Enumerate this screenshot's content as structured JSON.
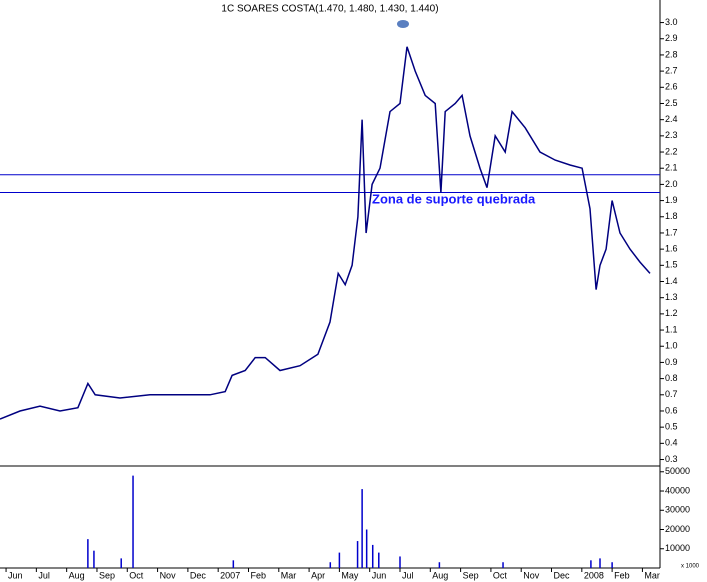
{
  "chart_data": [
    {
      "type": "line",
      "title": "1C SOARES COSTA(1.470, 1.480, 1.430, 1.440)",
      "color": "#000080",
      "x": [
        -0.2,
        0.46,
        1.12,
        1.78,
        2.37,
        2.7,
        2.94,
        3.76,
        4.75,
        5.74,
        6.73,
        7.23,
        7.46,
        7.89,
        8.22,
        8.55,
        9.04,
        9.7,
        10.29,
        10.69,
        10.96,
        11.19,
        11.42,
        11.61,
        11.75,
        11.88,
        12.08,
        12.34,
        12.67,
        13.0,
        13.23,
        13.5,
        13.83,
        14.16,
        14.35,
        14.49,
        14.82,
        15.05,
        15.31,
        15.64,
        15.87,
        16.14,
        16.47,
        16.7,
        17.13,
        17.62,
        18.12,
        18.61,
        19.01,
        19.27,
        19.47,
        19.6,
        19.8,
        20.0,
        20.26,
        20.59,
        20.92,
        21.25
      ],
      "values": [
        0.55,
        0.6,
        0.63,
        0.6,
        0.62,
        0.77,
        0.7,
        0.68,
        0.7,
        0.7,
        0.7,
        0.72,
        0.82,
        0.85,
        0.93,
        0.93,
        0.85,
        0.88,
        0.95,
        1.15,
        1.45,
        1.38,
        1.5,
        1.8,
        2.4,
        1.7,
        2.0,
        2.1,
        2.45,
        2.5,
        2.85,
        2.7,
        2.55,
        2.5,
        1.95,
        2.45,
        2.5,
        2.55,
        2.3,
        2.1,
        1.98,
        2.3,
        2.2,
        2.45,
        2.35,
        2.2,
        2.15,
        2.12,
        2.1,
        1.85,
        1.35,
        1.5,
        1.6,
        1.9,
        1.7,
        1.6,
        1.52,
        1.45
      ],
      "xlim": [
        -0.2,
        21.58
      ],
      "ylim": [
        0.26,
        3.09
      ],
      "yticks": [
        0.3,
        0.4,
        0.5,
        0.6,
        0.7,
        0.8,
        0.9,
        {
          "value": 1.0,
          "label": "1.0"
        },
        1.1,
        1.2,
        1.3,
        1.4,
        1.5,
        1.6,
        1.7,
        1.8,
        1.9,
        {
          "value": 2.0,
          "label": "2.0"
        },
        2.1,
        2.2,
        2.3,
        2.4,
        2.5,
        2.6,
        2.7,
        2.8,
        2.9,
        {
          "value": 3.0,
          "label": "3.0"
        }
      ],
      "hlines": [
        2.06,
        1.95
      ],
      "hline_color": "#0000cc",
      "annotation": "Zona de suporte quebrada"
    },
    {
      "type": "bar",
      "color": "#0000cc",
      "x": [
        2.7,
        2.9,
        3.8,
        4.19,
        7.5,
        10.7,
        11.0,
        11.6,
        11.75,
        11.9,
        12.1,
        12.3,
        13.0,
        14.3,
        16.4,
        19.3,
        19.6,
        20.0
      ],
      "values": [
        15000,
        9000,
        5000,
        48000,
        4000,
        3000,
        8000,
        14000,
        41000,
        20000,
        12000,
        8000,
        6000,
        3000,
        3000,
        4000,
        5000,
        3000
      ],
      "xlim": [
        -0.2,
        21.58
      ],
      "ylim": [
        0,
        53000
      ],
      "yticks": [
        10000,
        20000,
        30000,
        40000,
        50000
      ],
      "xticks": [
        {
          "value": 0,
          "label": "Jun"
        },
        {
          "value": 1,
          "label": "Jul"
        },
        {
          "value": 2,
          "label": "Aug"
        },
        {
          "value": 3,
          "label": "Sep"
        },
        {
          "value": 4,
          "label": "Oct"
        },
        {
          "value": 5,
          "label": "Nov"
        },
        {
          "value": 6,
          "label": "Dec"
        },
        {
          "value": 7,
          "label": "2007"
        },
        {
          "value": 8,
          "label": "Feb"
        },
        {
          "value": 9,
          "label": "Mar"
        },
        {
          "value": 10,
          "label": "Apr"
        },
        {
          "value": 11,
          "label": "May"
        },
        {
          "value": 12,
          "label": "Jun"
        },
        {
          "value": 13,
          "label": "Jul"
        },
        {
          "value": 14,
          "label": "Aug"
        },
        {
          "value": 15,
          "label": "Sep"
        },
        {
          "value": 16,
          "label": "Oct"
        },
        {
          "value": 17,
          "label": "Nov"
        },
        {
          "value": 18,
          "label": "Dec"
        },
        {
          "value": 19,
          "label": "2008"
        },
        {
          "value": 20,
          "label": "Feb"
        },
        {
          "value": 21,
          "label": "Mar"
        }
      ],
      "unit_label": "x 1000"
    }
  ]
}
